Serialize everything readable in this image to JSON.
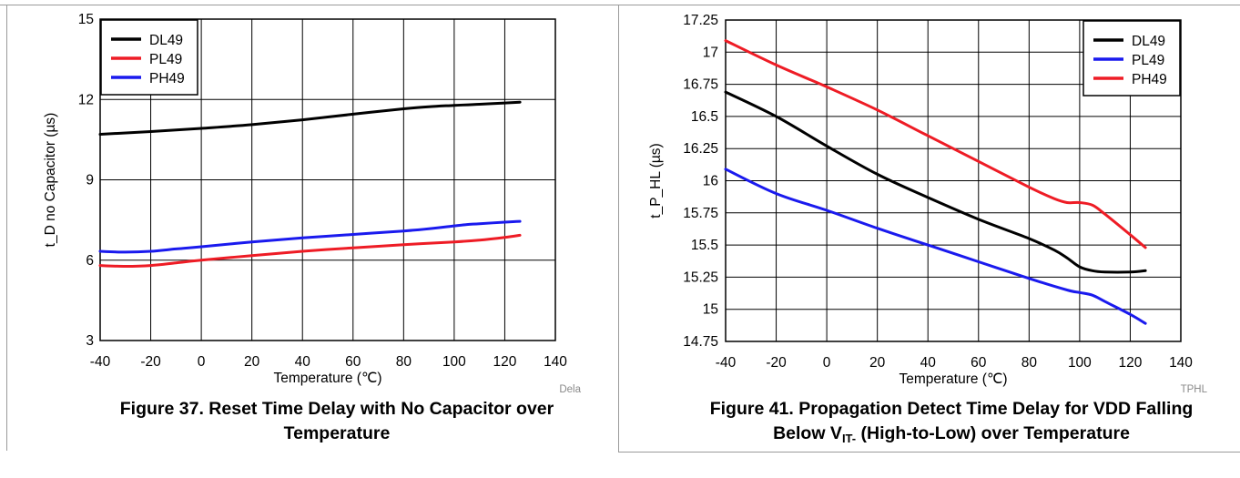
{
  "colors": {
    "black": "#000000",
    "red": "#ee1c25",
    "blue": "#1a1aee"
  },
  "chart_data": [
    {
      "type": "line",
      "id": "left",
      "xlabel": "Temperature (℃)",
      "ylabel": "t_D no Capacitor (µs)",
      "xlim": [
        -40,
        140
      ],
      "ylim": [
        3,
        15
      ],
      "xticks": [
        -40,
        -20,
        0,
        20,
        40,
        60,
        80,
        100,
        120,
        140
      ],
      "yticks": [
        3,
        6,
        9,
        12,
        15
      ],
      "grid": true,
      "legend_position": "top-left",
      "tag": "Dela",
      "caption": "Figure 37. Reset Time Delay with No Capacitor over Temperature",
      "series": [
        {
          "name": "DL49",
          "color": "#000000",
          "x": [
            -40,
            -20,
            0,
            20,
            40,
            60,
            80,
            90,
            100,
            110,
            120,
            126
          ],
          "y": [
            10.7,
            10.8,
            10.92,
            11.06,
            11.24,
            11.45,
            11.65,
            11.73,
            11.78,
            11.82,
            11.87,
            11.9
          ]
        },
        {
          "name": "PL49",
          "color": "#ee1c25",
          "x": [
            -40,
            -30,
            -20,
            -10,
            0,
            20,
            40,
            60,
            80,
            100,
            110,
            120,
            126
          ],
          "y": [
            5.8,
            5.77,
            5.8,
            5.9,
            6.0,
            6.17,
            6.33,
            6.46,
            6.58,
            6.68,
            6.75,
            6.85,
            6.93
          ]
        },
        {
          "name": "PH49",
          "color": "#1a1aee",
          "x": [
            -40,
            -30,
            -20,
            -10,
            0,
            20,
            40,
            60,
            80,
            90,
            100,
            105,
            110,
            120,
            126
          ],
          "y": [
            6.33,
            6.3,
            6.33,
            6.42,
            6.5,
            6.68,
            6.83,
            6.96,
            7.09,
            7.17,
            7.28,
            7.33,
            7.36,
            7.42,
            7.45
          ]
        }
      ]
    },
    {
      "type": "line",
      "id": "right",
      "xlabel": "Temperature (℃)",
      "ylabel": "t_P_HL (µs)",
      "xlim": [
        -40,
        140
      ],
      "ylim": [
        14.75,
        17.25
      ],
      "xticks": [
        -40,
        -20,
        0,
        20,
        40,
        60,
        80,
        100,
        120,
        140
      ],
      "yticks": [
        14.75,
        15,
        15.25,
        15.5,
        15.75,
        16,
        16.25,
        16.5,
        16.75,
        17,
        17.25
      ],
      "grid": true,
      "legend_position": "top-right",
      "tag": "TPHL",
      "caption_line1": "Figure 41. Propagation Detect Time Delay for VDD Falling",
      "caption_line2_pre": "Below V",
      "caption_line2_sub": "IT-",
      "caption_line2_post": " (High-to-Low) over Temperature",
      "series": [
        {
          "name": "DL49",
          "color": "#000000",
          "x": [
            -40,
            -20,
            0,
            20,
            40,
            60,
            80,
            90,
            95,
            100,
            105,
            110,
            120,
            126
          ],
          "y": [
            16.69,
            16.5,
            16.27,
            16.05,
            15.87,
            15.7,
            15.55,
            15.46,
            15.4,
            15.33,
            15.3,
            15.29,
            15.29,
            15.3
          ]
        },
        {
          "name": "PL49",
          "color": "#1a1aee",
          "x": [
            -40,
            -20,
            0,
            20,
            40,
            60,
            80,
            95,
            100,
            105,
            110,
            120,
            126
          ],
          "y": [
            16.09,
            15.9,
            15.77,
            15.63,
            15.5,
            15.37,
            15.24,
            15.15,
            15.13,
            15.11,
            15.06,
            14.96,
            14.89
          ]
        },
        {
          "name": "PH49",
          "color": "#ee1c25",
          "x": [
            -40,
            -20,
            0,
            20,
            40,
            60,
            80,
            90,
            95,
            100,
            105,
            110,
            120,
            126
          ],
          "y": [
            17.09,
            16.9,
            16.73,
            16.55,
            16.35,
            16.15,
            15.95,
            15.86,
            15.83,
            15.83,
            15.81,
            15.74,
            15.58,
            15.48
          ]
        }
      ]
    }
  ]
}
